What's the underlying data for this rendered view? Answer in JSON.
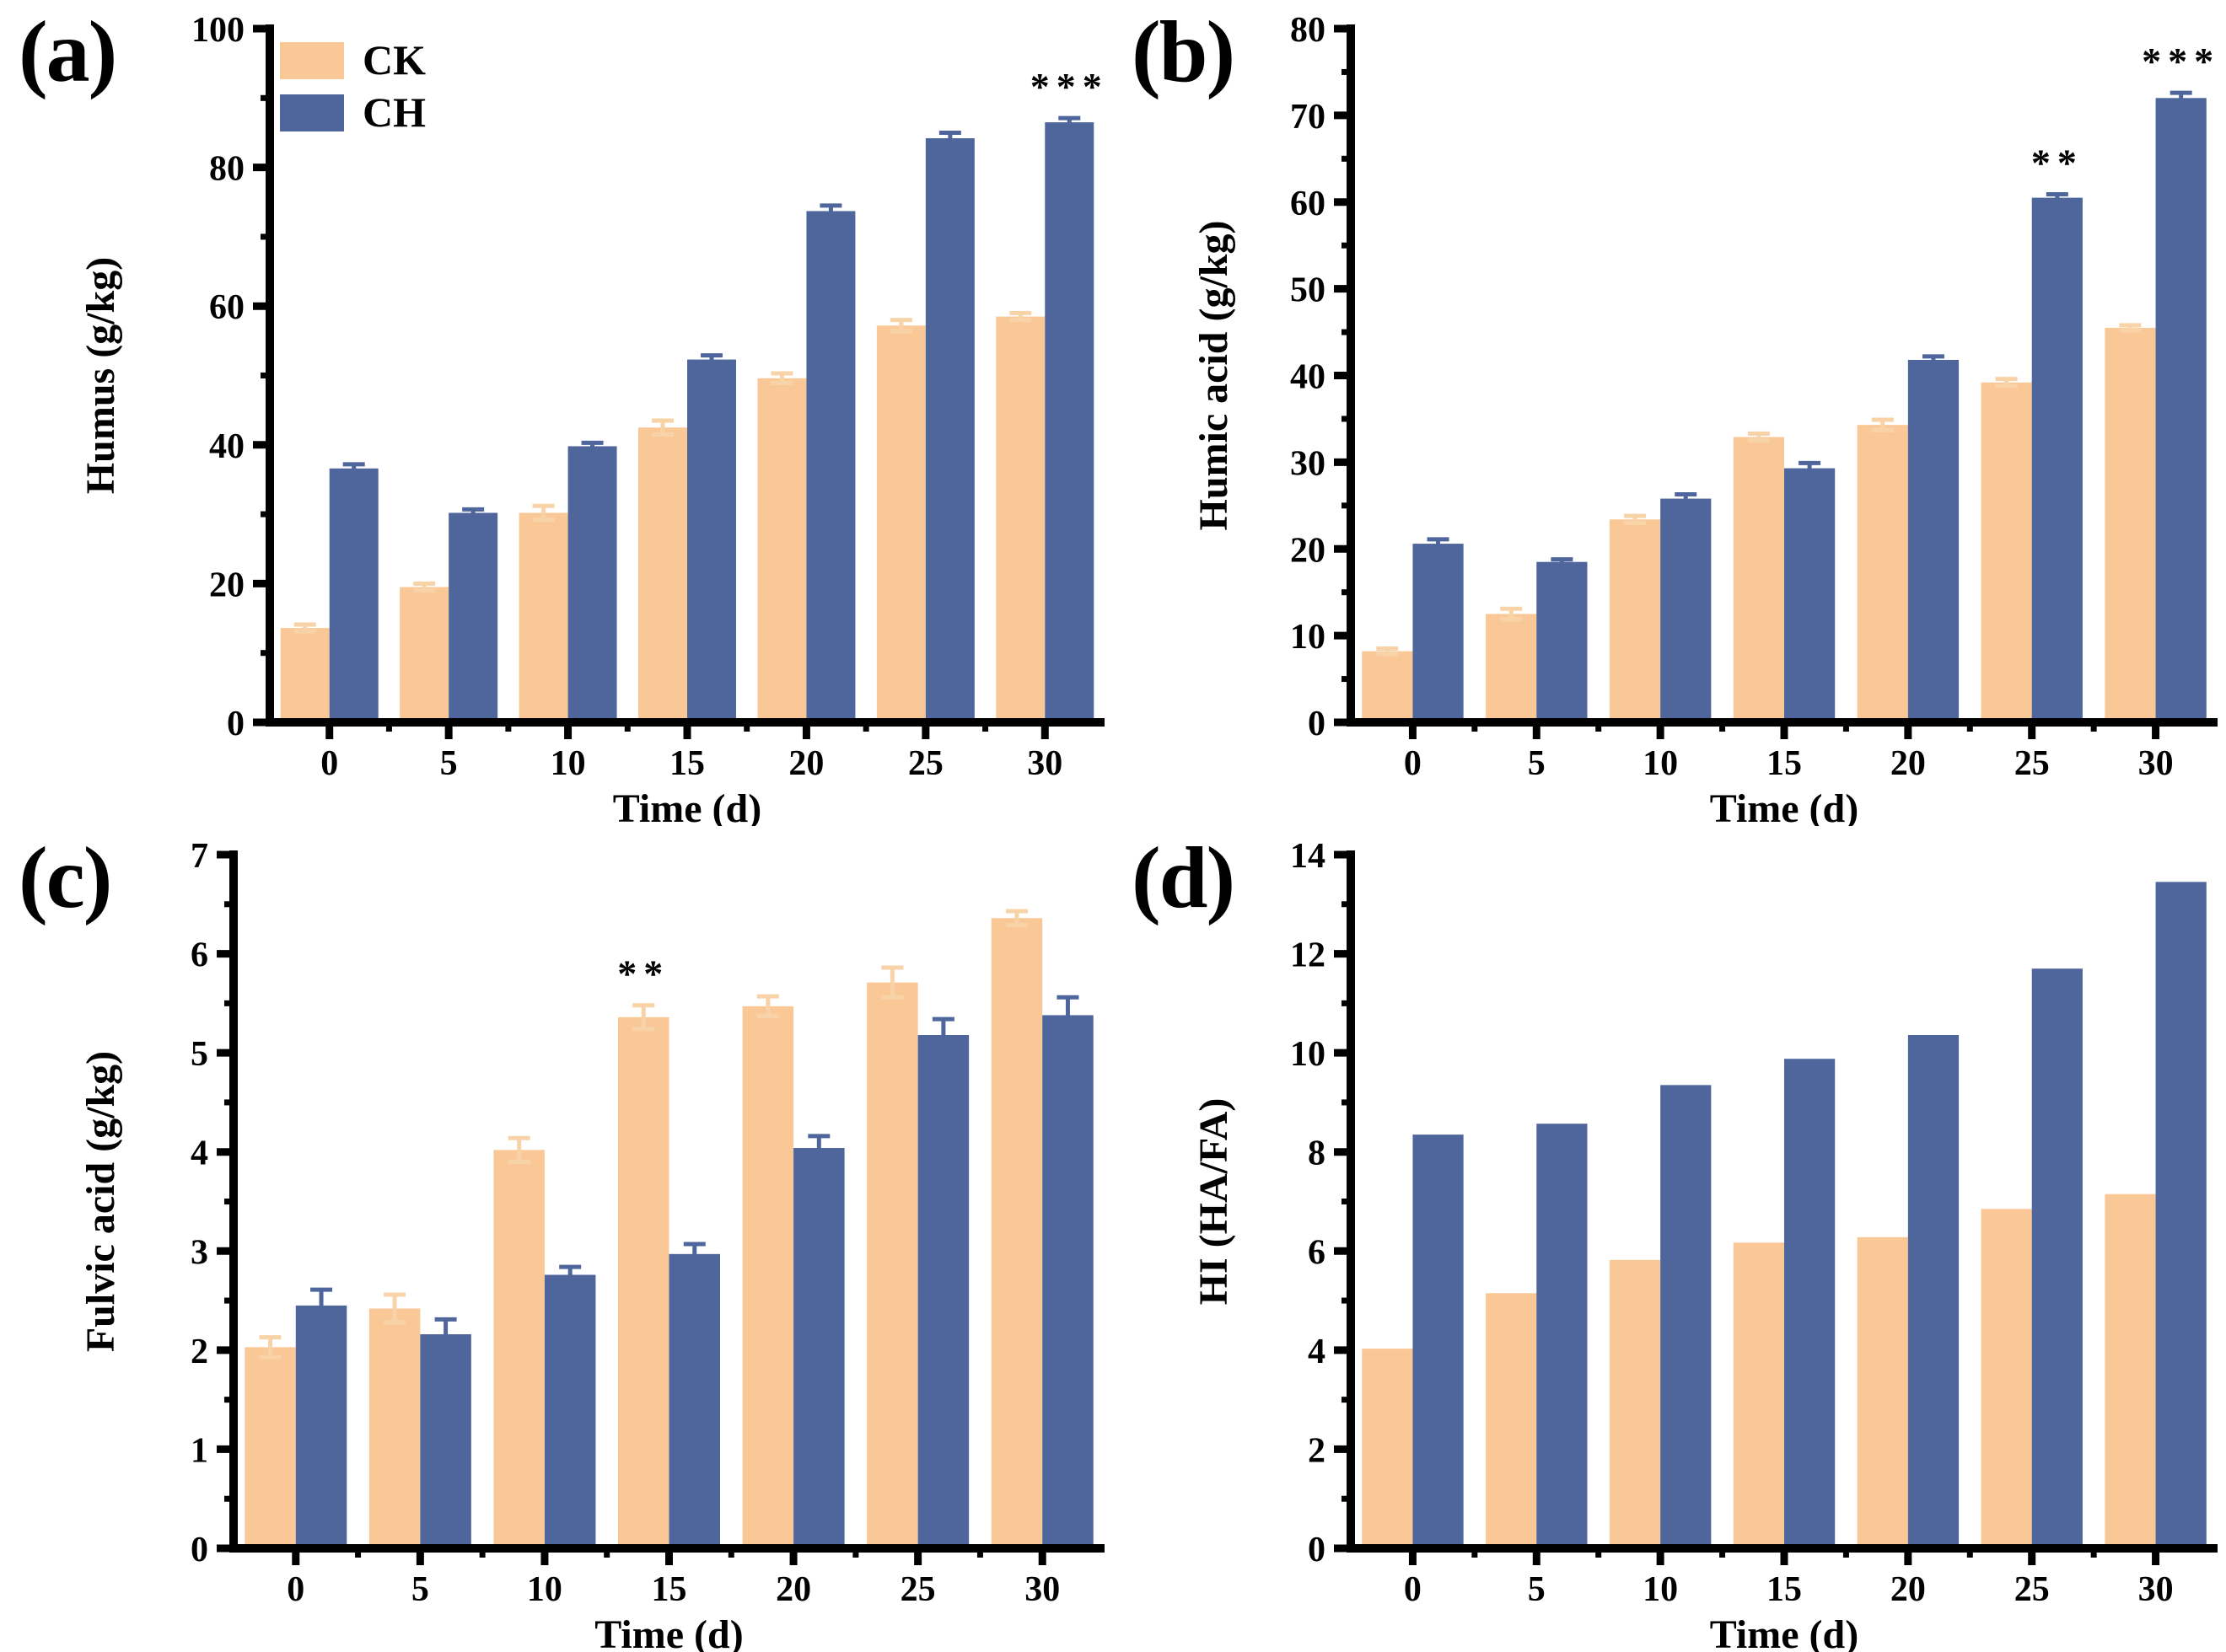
{
  "figure_background": "#ffffff",
  "series_colors": {
    "CK": "#FAC897",
    "CH": "#4E669C"
  },
  "error_colors": {
    "CK": "#F9D3A8",
    "CH": "#4E669C"
  },
  "axis_color": "#000000",
  "chart_data": [
    {
      "type": "bar",
      "panel_label": "(a)",
      "title": "",
      "xlabel": "Time (d)",
      "ylabel": "Humus (g/kg)",
      "categories": [
        "0",
        "5",
        "10",
        "15",
        "20",
        "25",
        "30"
      ],
      "ylim": [
        0,
        100
      ],
      "ytick_labels": [
        "0",
        "20",
        "40",
        "60",
        "80",
        "100"
      ],
      "ymajor_step": 20,
      "yminor_step": 10,
      "grid": false,
      "legend": {
        "show": true,
        "position": "top-left",
        "labels": [
          "CK",
          "CH"
        ]
      },
      "series": [
        {
          "name": "CK",
          "values": [
            13.6,
            19.5,
            30.2,
            42.5,
            49.6,
            57.2,
            58.5
          ],
          "errors": [
            0.5,
            0.5,
            1.0,
            1.0,
            0.7,
            0.8,
            0.5
          ]
        },
        {
          "name": "CH",
          "values": [
            36.6,
            30.2,
            39.8,
            52.3,
            73.7,
            84.2,
            86.5
          ],
          "errors": [
            0.6,
            0.5,
            0.5,
            0.6,
            0.8,
            0.8,
            0.6
          ]
        }
      ],
      "significance": [
        {
          "series": "CH",
          "category": "30",
          "text": "***"
        }
      ]
    },
    {
      "type": "bar",
      "panel_label": "(b)",
      "title": "",
      "xlabel": "Time (d)",
      "ylabel": "Humic acid (g/kg)",
      "categories": [
        "0",
        "5",
        "10",
        "15",
        "20",
        "25",
        "30"
      ],
      "ylim": [
        0,
        80
      ],
      "ytick_labels": [
        "0",
        "10",
        "20",
        "30",
        "40",
        "50",
        "60",
        "70",
        "80"
      ],
      "ymajor_step": 10,
      "yminor_step": 5,
      "grid": false,
      "legend": {
        "show": false,
        "labels": []
      },
      "series": [
        {
          "name": "CK",
          "values": [
            8.2,
            12.5,
            23.4,
            32.9,
            34.3,
            39.2,
            45.5
          ],
          "errors": [
            0.3,
            0.6,
            0.4,
            0.4,
            0.6,
            0.4,
            0.3
          ]
        },
        {
          "name": "CH",
          "values": [
            20.6,
            18.5,
            25.8,
            29.3,
            41.8,
            60.5,
            72.0
          ],
          "errors": [
            0.5,
            0.3,
            0.5,
            0.6,
            0.4,
            0.4,
            0.6
          ]
        }
      ],
      "significance": [
        {
          "series": "CH",
          "category": "25",
          "text": "**"
        },
        {
          "series": "CH",
          "category": "30",
          "text": "***"
        }
      ]
    },
    {
      "type": "bar",
      "panel_label": "(c)",
      "title": "",
      "xlabel": "Time (d)",
      "ylabel": "Fulvic acid (g/kg)",
      "categories": [
        "0",
        "5",
        "10",
        "15",
        "20",
        "25",
        "30"
      ],
      "ylim": [
        0,
        7
      ],
      "ytick_labels": [
        "0",
        "1",
        "2",
        "3",
        "4",
        "5",
        "6",
        "7"
      ],
      "ymajor_step": 1,
      "yminor_step": 0.5,
      "grid": false,
      "legend": {
        "show": false,
        "labels": []
      },
      "series": [
        {
          "name": "CK",
          "values": [
            2.03,
            2.42,
            4.02,
            5.36,
            5.47,
            5.71,
            6.36
          ],
          "errors": [
            0.1,
            0.14,
            0.12,
            0.12,
            0.1,
            0.15,
            0.07
          ]
        },
        {
          "name": "CH",
          "values": [
            2.45,
            2.16,
            2.76,
            2.97,
            4.04,
            5.18,
            5.38
          ],
          "errors": [
            0.16,
            0.15,
            0.08,
            0.1,
            0.12,
            0.16,
            0.18
          ]
        }
      ],
      "significance": [
        {
          "series": "CK",
          "category": "15",
          "text": "**"
        }
      ]
    },
    {
      "type": "bar",
      "panel_label": "(d)",
      "title": "",
      "xlabel": "Time (d)",
      "ylabel": "HI (HA/FA)",
      "categories": [
        "0",
        "5",
        "10",
        "15",
        "20",
        "25",
        "30"
      ],
      "ylim": [
        0,
        14
      ],
      "ytick_labels": [
        "0",
        "2",
        "4",
        "6",
        "8",
        "10",
        "12",
        "14"
      ],
      "ymajor_step": 2,
      "yminor_step": 1,
      "grid": false,
      "legend": {
        "show": false,
        "labels": []
      },
      "series": [
        {
          "name": "CK",
          "values": [
            4.03,
            5.15,
            5.82,
            6.17,
            6.28,
            6.85,
            7.15
          ],
          "errors": [
            0,
            0,
            0,
            0,
            0,
            0,
            0
          ]
        },
        {
          "name": "CH",
          "values": [
            8.35,
            8.57,
            9.35,
            9.88,
            10.36,
            11.7,
            13.45
          ],
          "errors": [
            0,
            0,
            0,
            0,
            0,
            0,
            0
          ]
        }
      ],
      "significance": []
    }
  ]
}
